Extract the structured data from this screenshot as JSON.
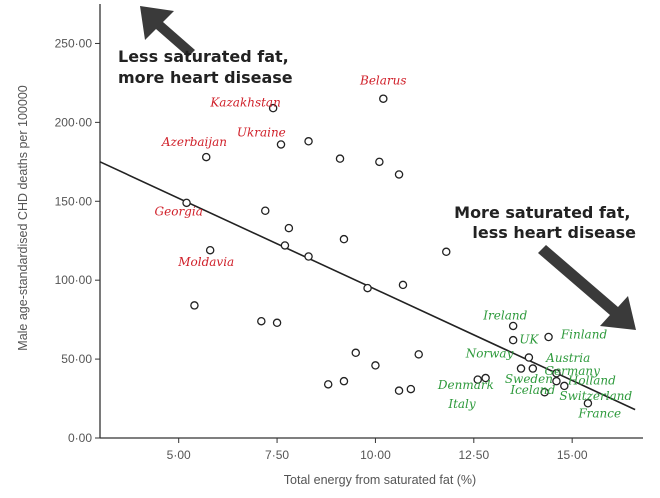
{
  "chart_data": {
    "type": "scatter",
    "xlabel": "Total energy from saturated fat (%)",
    "ylabel": "Male age-standardised CHD deaths per 100000",
    "xlim": [
      3.0,
      16.8
    ],
    "ylim": [
      0,
      275
    ],
    "x_ticks": [
      {
        "value": 5,
        "label": "5·00"
      },
      {
        "value": 7.5,
        "label": "7·50"
      },
      {
        "value": 10,
        "label": "10·00"
      },
      {
        "value": 12.5,
        "label": "12·50"
      },
      {
        "value": 15,
        "label": "15·00"
      }
    ],
    "y_ticks": [
      {
        "value": 0,
        "label": "0·00"
      },
      {
        "value": 50,
        "label": "50·00"
      },
      {
        "value": 100,
        "label": "100·00"
      },
      {
        "value": 150,
        "label": "150·00"
      },
      {
        "value": 200,
        "label": "200·00"
      },
      {
        "value": 250,
        "label": "250·00"
      }
    ],
    "points": [
      {
        "x": 10.2,
        "y": 215
      },
      {
        "x": 7.4,
        "y": 209
      },
      {
        "x": 8.3,
        "y": 188
      },
      {
        "x": 7.6,
        "y": 186
      },
      {
        "x": 5.7,
        "y": 178
      },
      {
        "x": 9.1,
        "y": 177
      },
      {
        "x": 10.1,
        "y": 175
      },
      {
        "x": 10.6,
        "y": 167
      },
      {
        "x": 5.2,
        "y": 149
      },
      {
        "x": 7.2,
        "y": 144
      },
      {
        "x": 7.8,
        "y": 133
      },
      {
        "x": 9.2,
        "y": 126
      },
      {
        "x": 7.7,
        "y": 122
      },
      {
        "x": 5.8,
        "y": 119
      },
      {
        "x": 11.8,
        "y": 118
      },
      {
        "x": 8.3,
        "y": 115
      },
      {
        "x": 10.7,
        "y": 97
      },
      {
        "x": 9.8,
        "y": 95
      },
      {
        "x": 5.4,
        "y": 84
      },
      {
        "x": 7.1,
        "y": 74
      },
      {
        "x": 7.5,
        "y": 73
      },
      {
        "x": 13.5,
        "y": 71
      },
      {
        "x": 14.4,
        "y": 64
      },
      {
        "x": 13.5,
        "y": 62
      },
      {
        "x": 9.5,
        "y": 54
      },
      {
        "x": 11.1,
        "y": 53
      },
      {
        "x": 13.9,
        "y": 51
      },
      {
        "x": 10.0,
        "y": 46
      },
      {
        "x": 13.7,
        "y": 44
      },
      {
        "x": 14.0,
        "y": 44
      },
      {
        "x": 14.6,
        "y": 41
      },
      {
        "x": 12.8,
        "y": 38
      },
      {
        "x": 12.6,
        "y": 37
      },
      {
        "x": 14.6,
        "y": 36
      },
      {
        "x": 9.2,
        "y": 36
      },
      {
        "x": 8.8,
        "y": 34
      },
      {
        "x": 14.8,
        "y": 33
      },
      {
        "x": 10.9,
        "y": 31
      },
      {
        "x": 10.6,
        "y": 30
      },
      {
        "x": 14.3,
        "y": 29
      },
      {
        "x": 15.4,
        "y": 22
      }
    ],
    "trendline": {
      "x": [
        3.0,
        16.6
      ],
      "y": [
        175,
        18
      ]
    },
    "annotations": {
      "top_left": [
        "Less saturated fat,",
        "more heart disease"
      ],
      "right": [
        "More saturated fat,",
        "less heart disease"
      ]
    },
    "country_labels": [
      {
        "text": "Belarus",
        "x": 10.2,
        "y": 224,
        "color": "#d0202a"
      },
      {
        "text": "Kazakhstan",
        "x": 6.7,
        "y": 210,
        "color": "#d0202a"
      },
      {
        "text": "Ukraine",
        "x": 7.1,
        "y": 191,
        "color": "#d0202a"
      },
      {
        "text": "Azerbaijan",
        "x": 5.4,
        "y": 185,
        "color": "#d0202a"
      },
      {
        "text": "Georgia",
        "x": 5.0,
        "y": 141,
        "color": "#d0202a"
      },
      {
        "text": "Moldavia",
        "x": 5.7,
        "y": 109,
        "color": "#d0202a"
      },
      {
        "text": "Ireland",
        "x": 13.3,
        "y": 75,
        "color": "#2e9a3c"
      },
      {
        "text": "UK",
        "x": 13.9,
        "y": 60,
        "color": "#2e9a3c"
      },
      {
        "text": "Finland",
        "x": 15.3,
        "y": 63,
        "color": "#2e9a3c"
      },
      {
        "text": "Norway",
        "x": 12.9,
        "y": 51,
        "color": "#2e9a3c"
      },
      {
        "text": "Austria",
        "x": 14.9,
        "y": 48,
        "color": "#2e9a3c"
      },
      {
        "text": "Germany",
        "x": 15.0,
        "y": 40,
        "color": "#2e9a3c"
      },
      {
        "text": "Sweden",
        "x": 13.9,
        "y": 35,
        "color": "#2e9a3c"
      },
      {
        "text": "Holland",
        "x": 15.5,
        "y": 34,
        "color": "#2e9a3c"
      },
      {
        "text": "Denmark",
        "x": 12.3,
        "y": 31,
        "color": "#2e9a3c"
      },
      {
        "text": "Iceland",
        "x": 14.0,
        "y": 28,
        "color": "#2e9a3c"
      },
      {
        "text": "Switzerland",
        "x": 15.6,
        "y": 24,
        "color": "#2e9a3c"
      },
      {
        "text": "Italy",
        "x": 12.2,
        "y": 19,
        "color": "#2e9a3c"
      },
      {
        "text": "France",
        "x": 15.7,
        "y": 13,
        "color": "#2e9a3c"
      }
    ],
    "colors": {
      "axis": "#333333",
      "points": "#222222",
      "trendline": "#222222",
      "arrow": "#3a3a3a",
      "low_fat_countries": "#d0202a",
      "high_fat_countries": "#2e9a3c"
    },
    "grid": false
  }
}
